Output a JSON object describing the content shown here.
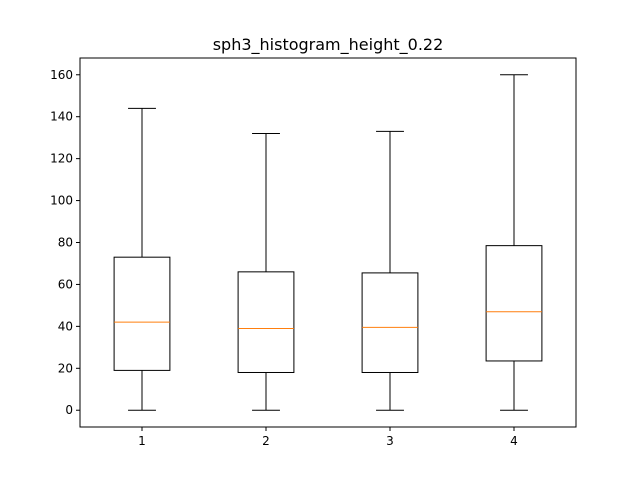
{
  "chart_data": {
    "type": "boxplot",
    "title": "sph3_histogram_height_0.22",
    "xlabel": "",
    "ylabel": "",
    "categories": [
      "1",
      "2",
      "3",
      "4"
    ],
    "boxes": [
      {
        "category": "1",
        "whisker_low": 0,
        "q1": 19,
        "median": 42,
        "q3": 73,
        "whisker_high": 144
      },
      {
        "category": "2",
        "whisker_low": 0,
        "q1": 18,
        "median": 39,
        "q3": 66,
        "whisker_high": 132
      },
      {
        "category": "3",
        "whisker_low": 0,
        "q1": 18,
        "median": 39.5,
        "q3": 65.5,
        "whisker_high": 133
      },
      {
        "category": "4",
        "whisker_low": 0,
        "q1": 23.5,
        "median": 47,
        "q3": 78.5,
        "whisker_high": 160
      }
    ],
    "yticks": [
      0,
      20,
      40,
      60,
      80,
      100,
      120,
      140,
      160
    ],
    "ylim": [
      -8,
      168
    ],
    "xlim": [
      0.5,
      4.5
    ],
    "grid": false,
    "legend": "none",
    "colors": {
      "box": "#000000",
      "median": "#ff7f0e",
      "whisker": "#000000"
    }
  }
}
